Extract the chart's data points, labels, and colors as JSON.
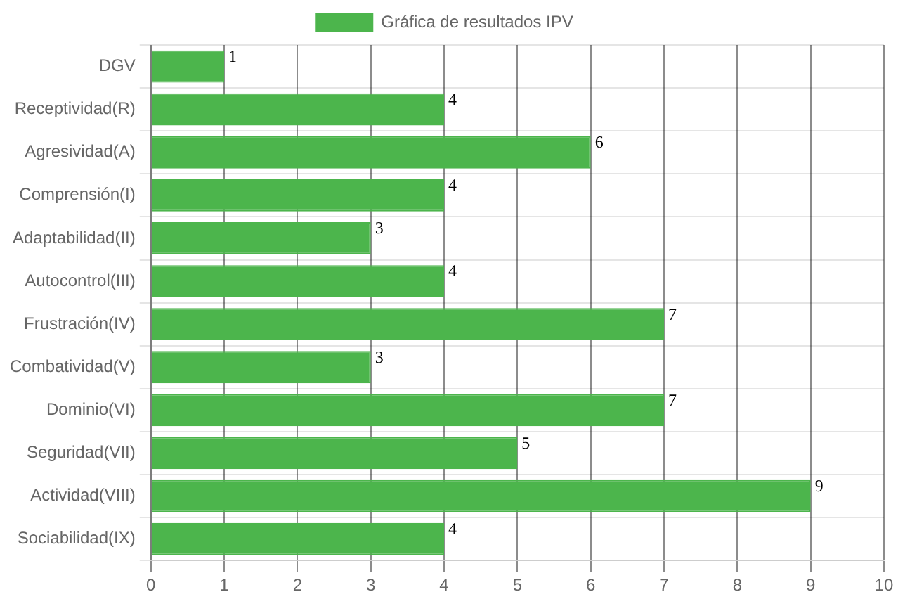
{
  "chart_data": {
    "type": "bar",
    "orientation": "horizontal",
    "categories": [
      "DGV",
      "Receptividad(R)",
      "Agresividad(A)",
      "Comprensión(I)",
      "Adaptabilidad(II)",
      "Autocontrol(III)",
      "Frustración(IV)",
      "Combatividad(V)",
      "Dominio(VI)",
      "Seguridad(VII)",
      "Actividad(VIII)",
      "Sociabilidad(IX)"
    ],
    "series": [
      {
        "name": "Gráfica de resultados IPV",
        "color": "#4cb54c",
        "values": [
          1,
          4,
          6,
          4,
          3,
          4,
          7,
          3,
          7,
          5,
          9,
          4
        ]
      }
    ],
    "xlim": [
      0,
      10
    ],
    "xticks": [
      0,
      1,
      2,
      3,
      4,
      5,
      6,
      7,
      8,
      9,
      10
    ],
    "grid": true,
    "legend": "top",
    "data_labels": true
  }
}
